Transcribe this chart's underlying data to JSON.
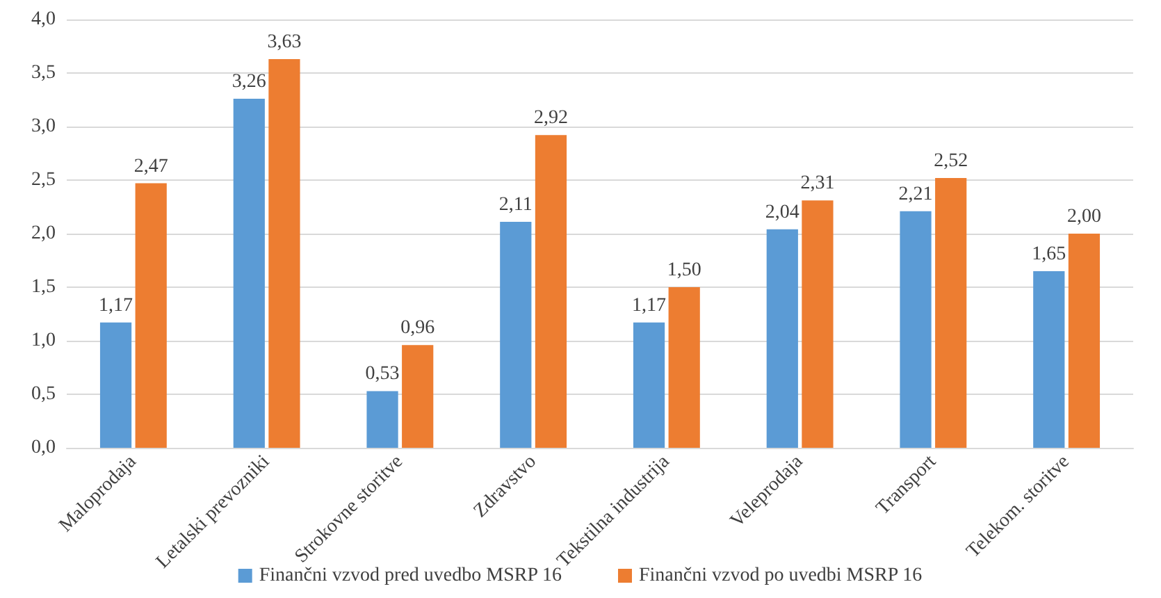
{
  "chart_data": {
    "type": "bar",
    "categories": [
      "Maloprodaja",
      "Letalski prevozniki",
      "Strokovne storitve",
      "Zdravstvo",
      "Tekstilna industrija",
      "Veleprodaja",
      "Transport",
      "Telekom. storitve"
    ],
    "series": [
      {
        "name": "Finančni vzvod pred uvedbo MSRP 16",
        "color": "#5b9bd5",
        "values": [
          1.17,
          3.26,
          0.53,
          2.11,
          1.17,
          2.04,
          2.21,
          1.65
        ],
        "value_labels": [
          "1,17",
          "3,26",
          "0,53",
          "2,11",
          "1,17",
          "2,04",
          "2,21",
          "1,65"
        ]
      },
      {
        "name": "Finančni vzvod po uvedbi MSRP 16",
        "color": "#ed7d31",
        "values": [
          2.47,
          3.63,
          0.96,
          2.92,
          1.5,
          2.31,
          2.52,
          2.0
        ],
        "value_labels": [
          "2,47",
          "3,63",
          "0,96",
          "2,92",
          "1,50",
          "2,31",
          "2,52",
          "2,00"
        ]
      }
    ],
    "ylim": [
      0,
      4
    ],
    "yticks": [
      {
        "value": 0,
        "label": "0,0"
      },
      {
        "value": 0.5,
        "label": "0,5"
      },
      {
        "value": 1,
        "label": "1,0"
      },
      {
        "value": 1.5,
        "label": "1,5"
      },
      {
        "value": 2,
        "label": "2,0"
      },
      {
        "value": 2.5,
        "label": "2,5"
      },
      {
        "value": 3,
        "label": "3,0"
      },
      {
        "value": 3.5,
        "label": "3,5"
      },
      {
        "value": 4,
        "label": "4,0"
      }
    ],
    "grid": "y",
    "legend": "bottom"
  }
}
